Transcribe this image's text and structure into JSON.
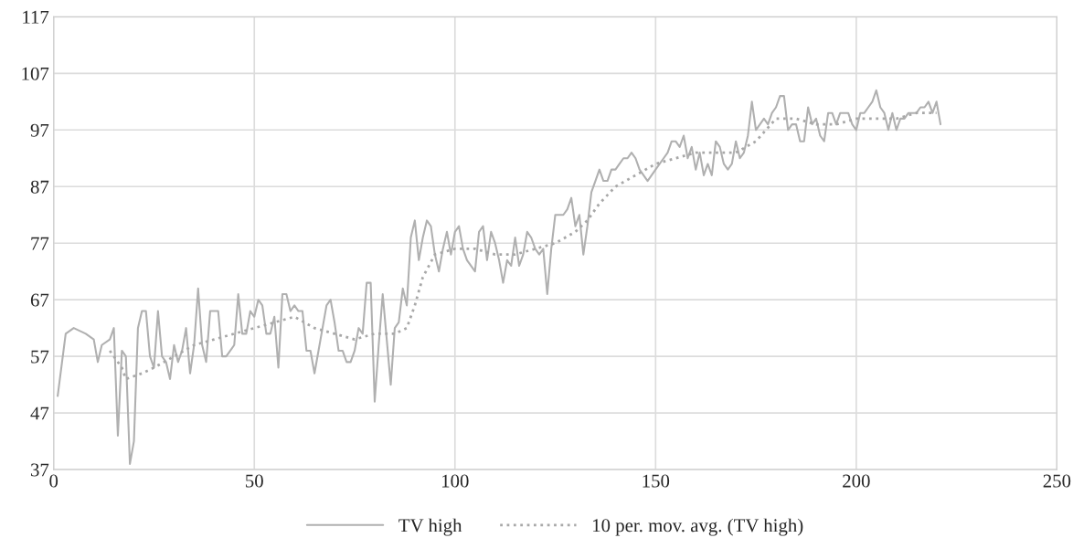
{
  "chart_data": {
    "type": "line",
    "xlim": [
      0,
      250
    ],
    "xticks": [
      0,
      50,
      100,
      150,
      200,
      250
    ],
    "ylim": [
      37,
      117
    ],
    "yticks": [
      37,
      47,
      57,
      67,
      77,
      87,
      97,
      107,
      117
    ],
    "grid": true,
    "legend": "bottom",
    "series": [
      {
        "name": "TV high",
        "color": "#b0b0b0",
        "line_style": "solid",
        "x": [
          1,
          3,
          5,
          8,
          10,
          11,
          12,
          14,
          15,
          16,
          17,
          18,
          19,
          20,
          21,
          22,
          23,
          24,
          25,
          26,
          27,
          28,
          29,
          30,
          31,
          32,
          33,
          34,
          35,
          36,
          37,
          38,
          39,
          41,
          42,
          43,
          45,
          46,
          47,
          48,
          49,
          50,
          51,
          52,
          53,
          54,
          55,
          56,
          57,
          58,
          59,
          60,
          61,
          62,
          63,
          64,
          65,
          66,
          67,
          68,
          69,
          70,
          71,
          72,
          73,
          74,
          75,
          76,
          77,
          78,
          79,
          80,
          81,
          82,
          83,
          84,
          85,
          86,
          87,
          88,
          89,
          90,
          91,
          92,
          93,
          94,
          95,
          96,
          97,
          98,
          99,
          100,
          101,
          102,
          103,
          105,
          106,
          107,
          108,
          109,
          110,
          111,
          112,
          113,
          114,
          115,
          116,
          117,
          118,
          119,
          120,
          121,
          122,
          123,
          124,
          125,
          126,
          127,
          128,
          129,
          130,
          131,
          132,
          133,
          134,
          135,
          136,
          137,
          138,
          139,
          140,
          141,
          142,
          143,
          144,
          145,
          146,
          147,
          148,
          149,
          150,
          152,
          153,
          154,
          155,
          156,
          157,
          158,
          159,
          160,
          161,
          162,
          163,
          164,
          165,
          166,
          167,
          168,
          169,
          170,
          171,
          172,
          173,
          174,
          175,
          176,
          177,
          178,
          179,
          180,
          181,
          182,
          183,
          184,
          185,
          186,
          187,
          188,
          189,
          190,
          191,
          192,
          193,
          194,
          195,
          196,
          197,
          198,
          199,
          200,
          201,
          202,
          203,
          204,
          205,
          206,
          207,
          208,
          209,
          210,
          211,
          212,
          213,
          214,
          215,
          216,
          217,
          218,
          219,
          220,
          221
        ],
        "values": [
          50,
          61,
          62,
          61,
          60,
          56,
          59,
          60,
          62,
          43,
          58,
          57,
          38,
          42,
          62,
          65,
          65,
          57,
          55,
          65,
          57,
          56,
          53,
          59,
          56,
          58,
          62,
          54,
          59,
          69,
          59,
          56,
          65,
          65,
          57,
          57,
          59,
          68,
          61,
          61,
          65,
          64,
          67,
          66,
          61,
          61,
          64,
          55,
          68,
          68,
          65,
          66,
          65,
          65,
          58,
          58,
          54,
          58,
          62,
          66,
          67,
          63,
          58,
          58,
          56,
          56,
          58,
          62,
          61,
          70,
          70,
          49,
          59,
          68,
          60,
          52,
          62,
          63,
          69,
          66,
          78,
          81,
          74,
          78,
          81,
          80,
          75,
          72,
          76,
          79,
          75,
          79,
          80,
          76,
          74,
          72,
          79,
          80,
          74,
          79,
          77,
          74,
          70,
          74,
          73,
          78,
          73,
          75,
          79,
          78,
          76,
          75,
          76,
          68,
          76,
          82,
          82,
          82,
          83,
          85,
          80,
          82,
          75,
          80,
          86,
          88,
          90,
          88,
          88,
          90,
          90,
          91,
          92,
          92,
          93,
          92,
          90,
          89,
          88,
          89,
          90,
          92,
          93,
          95,
          95,
          94,
          96,
          92,
          94,
          90,
          93,
          89,
          91,
          89,
          95,
          94,
          91,
          90,
          91,
          95,
          92,
          93,
          96,
          102,
          97,
          98,
          99,
          98,
          100,
          101,
          103,
          103,
          97,
          98,
          98,
          95,
          95,
          101,
          98,
          99,
          96,
          95,
          100,
          100,
          98,
          100,
          100,
          100,
          98,
          97,
          100,
          100,
          101,
          102,
          104,
          101,
          100,
          97,
          100,
          97,
          99,
          99,
          100,
          100,
          100,
          101,
          101,
          102,
          100,
          102,
          98
        ]
      },
      {
        "name": "10 per. mov. avg. (TV high)",
        "color": "#a8a8a8",
        "line_style": "dotted",
        "x": [
          14,
          17,
          18,
          22,
          25,
          30,
          35,
          40,
          45,
          50,
          55,
          60,
          65,
          70,
          75,
          80,
          85,
          88,
          90,
          92,
          95,
          100,
          105,
          110,
          115,
          120,
          125,
          130,
          133,
          136,
          140,
          145,
          150,
          155,
          160,
          165,
          170,
          175,
          180,
          185,
          190,
          195,
          200,
          205,
          210,
          215,
          220
        ],
        "values": [
          58,
          55,
          53,
          54,
          55,
          57,
          59,
          60,
          61,
          62,
          63,
          64,
          62,
          61,
          60,
          61,
          61,
          62,
          66,
          71,
          75,
          76,
          76,
          75,
          75,
          76,
          77,
          79,
          81,
          84,
          87,
          89,
          91,
          92,
          93,
          93,
          93,
          95,
          99,
          99,
          98,
          98,
          99,
          99,
          99,
          100,
          100
        ]
      }
    ]
  }
}
